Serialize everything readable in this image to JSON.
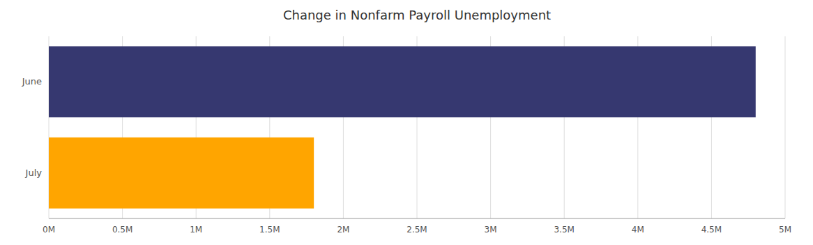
{
  "chart_data": {
    "type": "bar",
    "orientation": "horizontal",
    "title": "Change in Nonfarm Payroll Unemployment",
    "categories": [
      "June",
      "July"
    ],
    "values": [
      4800000,
      1800000
    ],
    "colors": [
      "#363870",
      "#FFA500"
    ],
    "xlim": [
      0,
      5000000
    ],
    "xticks": [
      {
        "value": 0,
        "label": "0M"
      },
      {
        "value": 500000,
        "label": "0.5M"
      },
      {
        "value": 1000000,
        "label": "1M"
      },
      {
        "value": 1500000,
        "label": "1.5M"
      },
      {
        "value": 2000000,
        "label": "2M"
      },
      {
        "value": 2500000,
        "label": "2.5M"
      },
      {
        "value": 3000000,
        "label": "3M"
      },
      {
        "value": 3500000,
        "label": "3.5M"
      },
      {
        "value": 4000000,
        "label": "4M"
      },
      {
        "value": 4500000,
        "label": "4.5M"
      },
      {
        "value": 5000000,
        "label": "5M"
      }
    ],
    "grid": true
  }
}
